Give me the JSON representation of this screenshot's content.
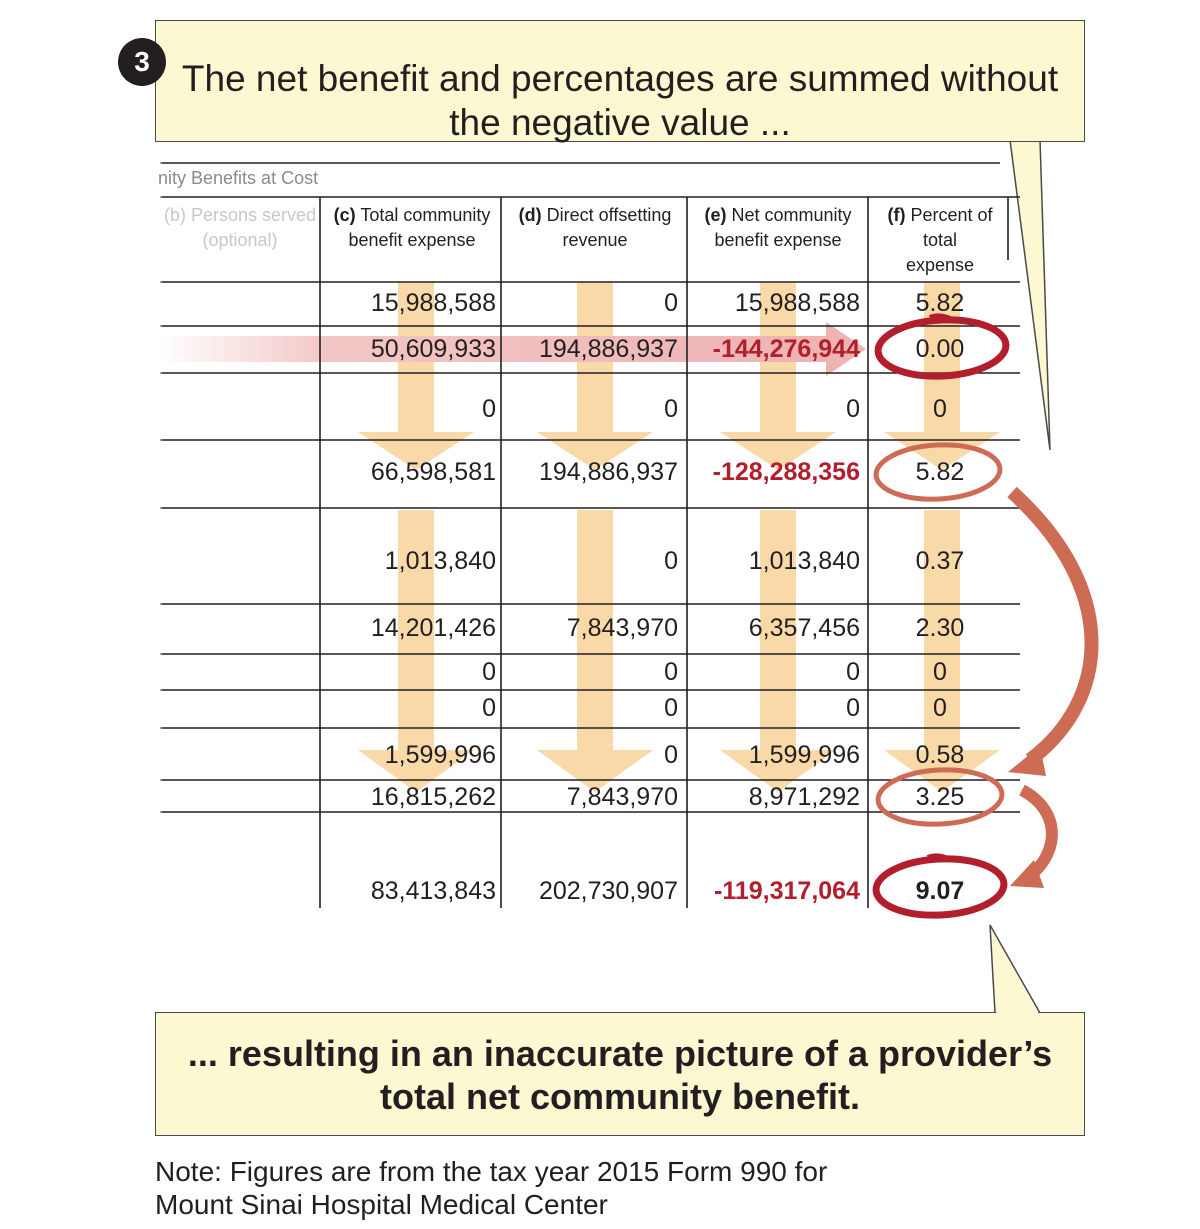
{
  "step_number": "3",
  "callout_top": {
    "line1": "The net benefit and percentages are summed without",
    "line2": "the negative value ..."
  },
  "callout_bottom": {
    "line1": "... resulting in an inaccurate picture of a provider’s",
    "line2": "total net community benefit."
  },
  "table": {
    "section_title": "nity Benefits at Cost",
    "headers": {
      "b": {
        "letter": "(b)",
        "text1": "Persons served",
        "text2": "(optional)"
      },
      "c": {
        "letter": "(c)",
        "text1": "Total community",
        "text2": "benefit expense"
      },
      "d": {
        "letter": "(d)",
        "text1": "Direct offsetting",
        "text2": "revenue"
      },
      "e": {
        "letter": "(e)",
        "text1": "Net community",
        "text2": "benefit expense"
      },
      "f": {
        "letter": "(f)",
        "text1": "Percent of total",
        "text2": "expense"
      }
    },
    "rows": [
      {
        "c": "15,988,588",
        "d": "0",
        "e": "15,988,588",
        "f": "5.82"
      },
      {
        "c": "50,609,933",
        "d": "194,886,937",
        "e": "-144,276,944",
        "f": "0.00"
      },
      {
        "c": "0",
        "d": "0",
        "e": "0",
        "f": "0"
      },
      {
        "c": "66,598,581",
        "d": "194,886,937",
        "e": "-128,288,356",
        "f": "5.82"
      },
      {
        "c": "1,013,840",
        "d": "0",
        "e": "1,013,840",
        "f": "0.37"
      },
      {
        "c": "14,201,426",
        "d": "7,843,970",
        "e": "6,357,456",
        "f": "2.30"
      },
      {
        "c": "0",
        "d": "0",
        "e": "0",
        "f": "0"
      },
      {
        "c": "0",
        "d": "0",
        "e": "0",
        "f": "0"
      },
      {
        "c": "1,599,996",
        "d": "0",
        "e": "1,599,996",
        "f": "0.58"
      },
      {
        "c": "16,815,262",
        "d": "7,843,970",
        "e": "8,971,292",
        "f": "3.25"
      },
      {
        "c": "83,413,843",
        "d": "202,730,907",
        "e": "-119,317,064",
        "f": "9.07"
      }
    ]
  },
  "note": {
    "line1": "Note: Figures are from the tax year 2015 Form 990 for",
    "line2": "Mount Sinai Hospital Medical Center"
  },
  "colors": {
    "callout_fill": "#fcf8d2",
    "arrow_fill": "#f9d9a7",
    "arrow_red": "#cd6b55",
    "circle_red": "#b21e2b",
    "negative_text": "#b21e2b"
  }
}
